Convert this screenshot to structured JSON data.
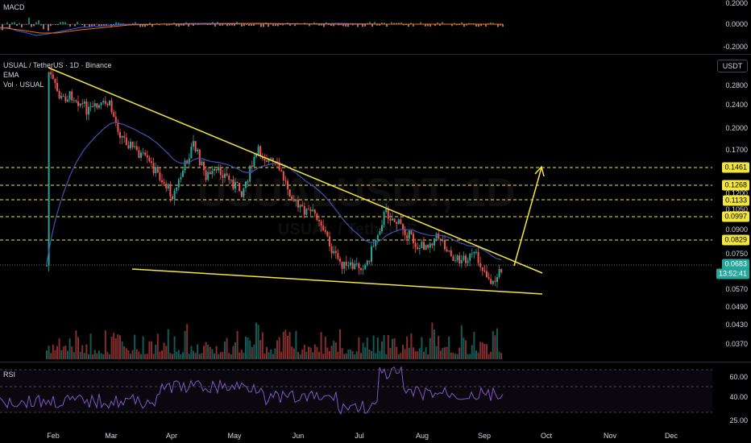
{
  "macd_pane": {
    "label": "MACD",
    "ticks": [
      "0.2000",
      "0.0000",
      "-0.2000"
    ]
  },
  "price_pane": {
    "legend": [
      "USUAL / TetherUS · 1D · Binance",
      "EMA",
      "Vol · USUAL"
    ],
    "currency": "USDT",
    "ticks": [
      "0.2800",
      "0.2400",
      "0.2000",
      "0.1700",
      "0.1200",
      "0.1050",
      "0.0900",
      "0.0750",
      "0.0570",
      "0.0490",
      "0.0430",
      "0.0370"
    ],
    "levels": [
      "0.1461",
      "0.1268",
      "0.1133",
      "0.0997",
      "0.0829"
    ],
    "current_price": "0.0683",
    "countdown": "13:52:41",
    "watermark_big": "USUALUSDT, 1D",
    "watermark_small": "USUAL / TetherUS"
  },
  "rsi_pane": {
    "label": "RSI",
    "ticks": [
      "60.00",
      "40.00",
      "25.00"
    ]
  },
  "x_axis": {
    "labels": [
      "Feb",
      "Mar",
      "Apr",
      "May",
      "Jun",
      "Jul",
      "Aug",
      "Sep",
      "Oct",
      "Nov",
      "Dec"
    ]
  },
  "colors": {
    "up": "#26a69a",
    "down": "#ef5350",
    "ema": "#3f51b5",
    "trend": "#f5e63b",
    "rsi": "#7e57c2",
    "bg": "#000000"
  }
}
